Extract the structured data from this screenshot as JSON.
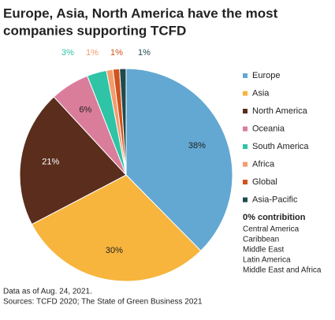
{
  "chart_data": {
    "type": "pie",
    "title_lines": [
      "Europe, Asia, North America have the most",
      "companies supporting TCFD"
    ],
    "categories": [
      "Europe",
      "Asia",
      "North America",
      "Oceania",
      "South America",
      "Africa",
      "Global",
      "Asia-Pacific"
    ],
    "values": [
      38,
      30,
      21,
      6,
      3,
      1,
      1,
      1
    ],
    "value_labels": [
      "38%",
      "30%",
      "21%",
      "6%",
      "3%",
      "1%",
      "1%",
      "1%"
    ],
    "colors": [
      "#62a8d2",
      "#f7b53d",
      "#5a2d1c",
      "#d97d9b",
      "#2ec4a5",
      "#f59b6c",
      "#d0531f",
      "#1f4a4e"
    ],
    "legend": "right",
    "zero_contribution": {
      "title": "0% contribition",
      "items": [
        "Central America",
        "Caribbean",
        "Middle East",
        "Latin America",
        "Middle East and Africa"
      ]
    },
    "notes": [
      "Data as of Aug. 24, 2021.",
      "Sources: TCFD 2020; The State of Green Business 2021"
    ]
  }
}
